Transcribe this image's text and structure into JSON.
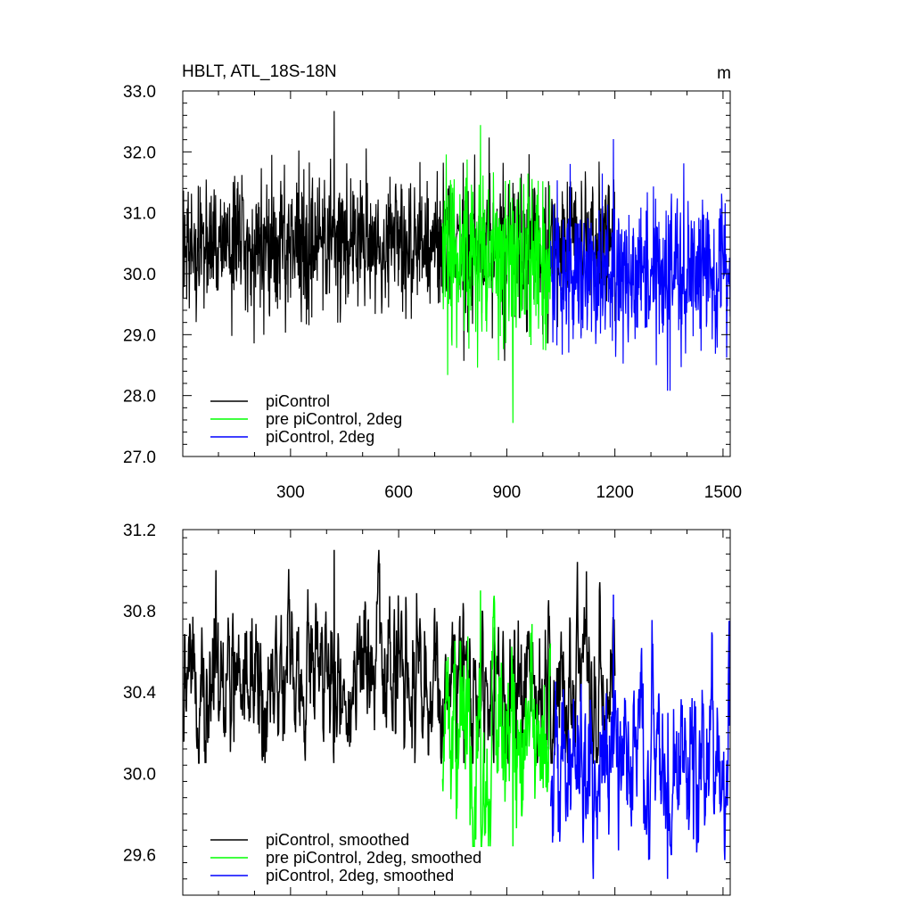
{
  "chart_data": [
    {
      "type": "line",
      "title": "HBLT, ATL_18S-18N",
      "units": "m",
      "xlim": [
        1,
        1520
      ],
      "ylim": [
        27.0,
        33.0
      ],
      "x_ticks": [
        300,
        600,
        900,
        1200,
        1500
      ],
      "y_ticks": [
        27.0,
        28.0,
        29.0,
        30.0,
        31.0,
        32.0,
        33.0
      ],
      "x_tick_labels": [
        "300",
        "600",
        "900",
        "1200",
        "1500"
      ],
      "y_tick_labels": [
        "27.0",
        "28.0",
        "29.0",
        "30.0",
        "31.0",
        "32.0",
        "33.0"
      ],
      "legend_position": "bottom-left",
      "series": [
        {
          "name": "piControl",
          "color": "#000000",
          "x_range": [
            1,
            1200
          ],
          "mean": 30.5,
          "std": 0.55,
          "max": 32.67,
          "min": 28.57
        },
        {
          "name": "pre piControl, 2deg",
          "color": "#00ff00",
          "x_range": [
            722,
            1021
          ],
          "mean": 30.25,
          "std": 0.7,
          "max": 32.44,
          "min": 27.55
        },
        {
          "name": "piControl, 2deg",
          "color": "#0000ff",
          "x_range": [
            1022,
            1520
          ],
          "mean": 30.05,
          "std": 0.65,
          "max": 32.21,
          "min": 28.08
        }
      ]
    },
    {
      "type": "line",
      "xlim": [
        1,
        1520
      ],
      "ylim": [
        29.4,
        31.2
      ],
      "y_ticks": [
        29.6,
        30.0,
        30.4,
        30.8,
        31.2
      ],
      "y_tick_labels": [
        "29.6",
        "30.0",
        "30.4",
        "30.8",
        "31.2"
      ],
      "legend_position": "bottom-left",
      "series": [
        {
          "name": "piControl, smoothed",
          "color": "#000000",
          "x_range": [
            1,
            1200
          ],
          "mean": 30.45,
          "std": 0.2,
          "max": 31.1,
          "min": 30.05
        },
        {
          "name": "pre piControl, 2deg, smoothed",
          "color": "#00ff00",
          "x_range": [
            722,
            1021
          ],
          "mean": 30.2,
          "std": 0.25,
          "max": 30.9,
          "min": 29.64
        },
        {
          "name": "piControl, 2deg, smoothed",
          "color": "#0000ff",
          "x_range": [
            1022,
            1520
          ],
          "mean": 30.05,
          "std": 0.22,
          "max": 30.88,
          "min": 29.48
        }
      ]
    }
  ]
}
